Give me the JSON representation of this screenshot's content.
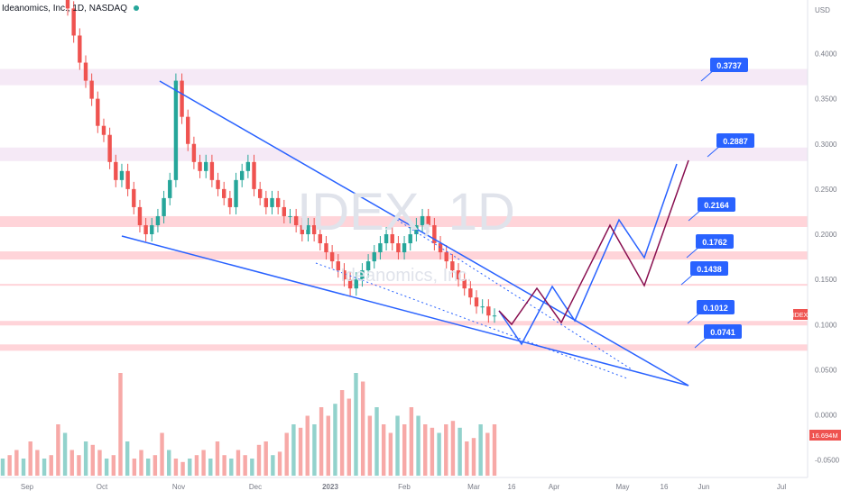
{
  "header": {
    "symbol_name": "Ideanomics, Inc.",
    "interval": "1D",
    "exchange": "NASDAQ"
  },
  "watermark": {
    "ticker": "IDEX, 1D",
    "company": "Ideanomics, Inc."
  },
  "price_axis": {
    "currency": "USD",
    "ticks": [
      "0.4000",
      "0.3500",
      "0.3000",
      "0.2500",
      "0.2000",
      "0.1500",
      "0.1000",
      "0.0500",
      "0.0000",
      "-0.0500"
    ],
    "last_price_label": "IDEX",
    "volume_label": "16.694M"
  },
  "time_axis": {
    "ticks": [
      "Sep",
      "Oct",
      "Nov",
      "Dec",
      "2023",
      "Feb",
      "Mar",
      "16",
      "Apr",
      "May",
      "16",
      "Jun",
      "Jul"
    ]
  },
  "colors": {
    "up": "#26a69a",
    "down": "#ef5350",
    "trendline": "#2962ff",
    "path_red": "#880e4f",
    "target_label_bg": "#2962ff",
    "resistance_zone": "#ffcdd2",
    "support_band": "#fbc7b0",
    "purple_zone": "#f3e5f5"
  },
  "chart_data": {
    "type": "candlestick",
    "y_range": [
      -0.05,
      0.45
    ],
    "price_levels": [
      0.3737,
      0.2887,
      0.2164,
      0.1762,
      0.1438,
      0.1012,
      0.0741
    ],
    "target_labels": [
      "0.3737",
      "0.2887",
      "0.2164",
      "0.1762",
      "0.1438",
      "0.1012",
      "0.0741"
    ],
    "horizontal_zones": [
      {
        "type": "purple",
        "from": 0.365,
        "to": 0.383
      },
      {
        "type": "purple",
        "from": 0.281,
        "to": 0.296
      },
      {
        "type": "salmon",
        "from": 0.208,
        "to": 0.22
      },
      {
        "type": "salmon",
        "from": 0.172,
        "to": 0.181
      },
      {
        "type": "salmon-line",
        "from": 0.143,
        "to": 0.145
      },
      {
        "type": "salmon",
        "from": 0.099,
        "to": 0.104
      },
      {
        "type": "salmon",
        "from": 0.071,
        "to": 0.078
      }
    ],
    "candle_closes": [
      0.45,
      0.42,
      0.39,
      0.37,
      0.35,
      0.32,
      0.31,
      0.28,
      0.26,
      0.27,
      0.25,
      0.23,
      0.21,
      0.2,
      0.21,
      0.22,
      0.24,
      0.26,
      0.37,
      0.33,
      0.3,
      0.28,
      0.27,
      0.28,
      0.26,
      0.25,
      0.24,
      0.23,
      0.26,
      0.27,
      0.28,
      0.25,
      0.24,
      0.23,
      0.24,
      0.23,
      0.22,
      0.22,
      0.21,
      0.2,
      0.21,
      0.2,
      0.19,
      0.18,
      0.17,
      0.16,
      0.15,
      0.14,
      0.15,
      0.16,
      0.17,
      0.18,
      0.19,
      0.2,
      0.19,
      0.18,
      0.19,
      0.2,
      0.21,
      0.22,
      0.21,
      0.19,
      0.18,
      0.17,
      0.16,
      0.15,
      0.14,
      0.13,
      0.12,
      0.12,
      0.11,
      0.11
    ],
    "volume_relative": [
      0.1,
      0.12,
      0.15,
      0.1,
      0.2,
      0.15,
      0.1,
      0.12,
      0.3,
      0.25,
      0.15,
      0.12,
      0.2,
      0.18,
      0.15,
      0.1,
      0.12,
      0.6,
      0.2,
      0.1,
      0.15,
      0.1,
      0.12,
      0.25,
      0.15,
      0.1,
      0.08,
      0.1,
      0.12,
      0.15,
      0.1,
      0.2,
      0.12,
      0.1,
      0.15,
      0.12,
      0.1,
      0.18,
      0.2,
      0.12,
      0.14,
      0.25,
      0.3,
      0.28,
      0.35,
      0.3,
      0.4,
      0.35,
      0.42,
      0.5,
      0.45,
      0.6,
      0.55,
      0.35,
      0.4,
      0.3,
      0.25,
      0.35,
      0.3,
      0.4,
      0.35,
      0.3,
      0.28,
      0.25,
      0.3,
      0.32,
      0.28,
      0.2,
      0.22,
      0.3,
      0.25,
      0.3
    ]
  }
}
